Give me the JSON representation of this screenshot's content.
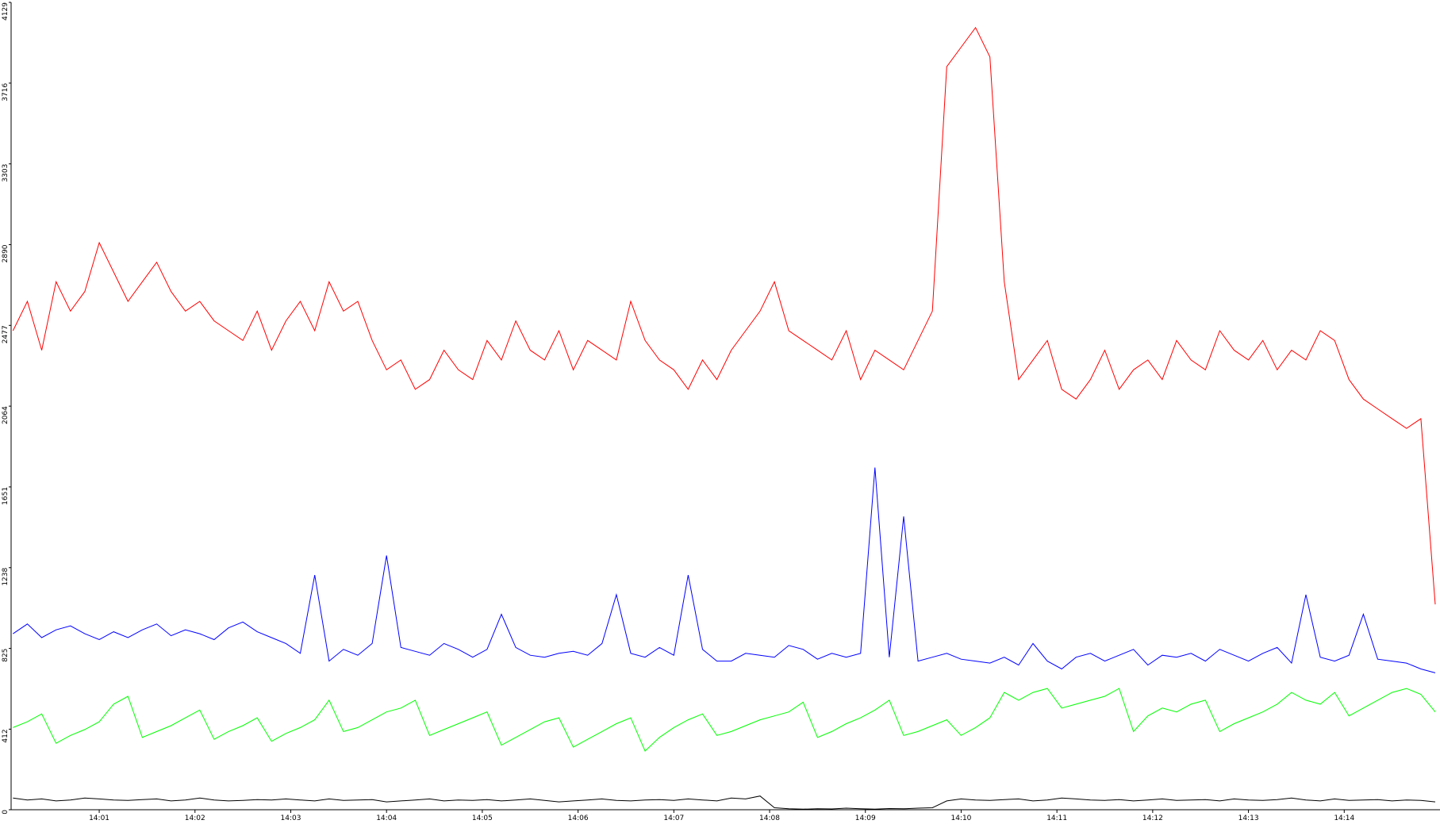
{
  "chart_data": {
    "type": "line",
    "x": [
      0.1,
      0.25,
      0.4,
      0.55,
      0.7,
      0.85,
      1.0,
      1.15,
      1.3,
      1.45,
      1.6,
      1.75,
      1.9,
      2.05,
      2.2,
      2.35,
      2.5,
      2.65,
      2.8,
      2.95,
      3.1,
      3.25,
      3.4,
      3.55,
      3.7,
      3.85,
      4.0,
      4.15,
      4.3,
      4.45,
      4.6,
      4.75,
      4.9,
      5.05,
      5.2,
      5.35,
      5.5,
      5.65,
      5.8,
      5.95,
      6.1,
      6.25,
      6.4,
      6.55,
      6.7,
      6.85,
      7.0,
      7.15,
      7.3,
      7.45,
      7.6,
      7.75,
      7.9,
      8.05,
      8.2,
      8.35,
      8.5,
      8.65,
      8.8,
      8.95,
      9.1,
      9.25,
      9.4,
      9.55,
      9.7,
      9.85,
      10.0,
      10.15,
      10.3,
      10.45,
      10.6,
      10.75,
      10.9,
      11.05,
      11.2,
      11.35,
      11.5,
      11.65,
      11.8,
      11.95,
      12.1,
      12.25,
      12.4,
      12.55,
      12.7,
      12.85,
      13.0,
      13.15,
      13.3,
      13.45,
      13.6,
      13.75,
      13.9,
      14.05,
      14.2,
      14.35,
      14.5,
      14.65,
      14.8,
      14.95
    ],
    "series": [
      {
        "color": "#ff0000",
        "values": [
          2450,
          2600,
          2350,
          2700,
          2550,
          2650,
          2900,
          2750,
          2600,
          2700,
          2800,
          2650,
          2550,
          2600,
          2500,
          2450,
          2400,
          2550,
          2350,
          2500,
          2600,
          2450,
          2700,
          2550,
          2600,
          2400,
          2250,
          2300,
          2150,
          2200,
          2350,
          2250,
          2200,
          2400,
          2300,
          2500,
          2350,
          2300,
          2450,
          2250,
          2400,
          2350,
          2300,
          2600,
          2400,
          2300,
          2250,
          2150,
          2300,
          2200,
          2350,
          2450,
          2550,
          2700,
          2450,
          2400,
          2350,
          2300,
          2450,
          2200,
          2350,
          2300,
          2250,
          2400,
          2550,
          3800,
          3900,
          4000,
          3850,
          2700,
          2200,
          2300,
          2400,
          2150,
          2100,
          2200,
          2350,
          2150,
          2250,
          2300,
          2200,
          2400,
          2300,
          2250,
          2450,
          2350,
          2300,
          2400,
          2250,
          2350,
          2300,
          2450,
          2400,
          2200,
          2100,
          2050,
          2000,
          1950,
          2000,
          1050
        ]
      },
      {
        "color": "#0000ff",
        "values": [
          900,
          950,
          880,
          920,
          940,
          900,
          870,
          910,
          880,
          920,
          950,
          890,
          920,
          900,
          870,
          930,
          960,
          910,
          880,
          850,
          800,
          1200,
          760,
          820,
          790,
          850,
          1300,
          830,
          810,
          790,
          850,
          820,
          780,
          820,
          1000,
          830,
          790,
          780,
          800,
          810,
          790,
          850,
          1100,
          800,
          780,
          830,
          790,
          1200,
          820,
          760,
          760,
          800,
          790,
          780,
          840,
          820,
          770,
          800,
          780,
          800,
          1750,
          780,
          1500,
          760,
          780,
          800,
          770,
          760,
          750,
          780,
          740,
          850,
          760,
          720,
          780,
          800,
          760,
          790,
          820,
          740,
          790,
          780,
          800,
          760,
          820,
          790,
          760,
          800,
          830,
          750,
          1100,
          780,
          760,
          790,
          1000,
          770,
          760,
          750,
          720,
          700
        ]
      },
      {
        "color": "#00ff00",
        "values": [
          420,
          450,
          490,
          340,
          380,
          410,
          450,
          540,
          580,
          370,
          400,
          430,
          470,
          510,
          360,
          400,
          430,
          470,
          350,
          390,
          420,
          460,
          560,
          400,
          420,
          460,
          500,
          520,
          560,
          380,
          410,
          440,
          470,
          500,
          330,
          370,
          410,
          450,
          470,
          320,
          360,
          400,
          440,
          470,
          300,
          370,
          420,
          460,
          490,
          380,
          400,
          430,
          460,
          480,
          500,
          550,
          370,
          400,
          440,
          470,
          510,
          560,
          380,
          400,
          430,
          460,
          380,
          420,
          470,
          600,
          560,
          600,
          620,
          520,
          540,
          560,
          580,
          620,
          400,
          480,
          520,
          500,
          540,
          560,
          400,
          440,
          470,
          500,
          540,
          600,
          560,
          540,
          600,
          480,
          520,
          560,
          600,
          620,
          590,
          500
        ]
      },
      {
        "color": "#000000",
        "values": [
          60,
          50,
          55,
          45,
          50,
          60,
          55,
          50,
          48,
          52,
          55,
          45,
          50,
          60,
          50,
          45,
          48,
          52,
          50,
          55,
          50,
          45,
          55,
          48,
          50,
          52,
          40,
          45,
          50,
          55,
          45,
          50,
          48,
          52,
          45,
          50,
          55,
          48,
          40,
          45,
          50,
          55,
          48,
          45,
          50,
          52,
          48,
          55,
          50,
          45,
          60,
          55,
          70,
          10,
          5,
          3,
          5,
          4,
          8,
          5,
          3,
          6,
          5,
          8,
          10,
          45,
          55,
          50,
          48,
          52,
          55,
          45,
          50,
          60,
          55,
          50,
          48,
          52,
          45,
          50,
          55,
          48,
          50,
          52,
          45,
          55,
          50,
          48,
          52,
          60,
          50,
          45,
          55,
          48,
          50,
          52,
          45,
          50,
          48,
          40
        ]
      }
    ],
    "xlim": [
      0.08,
      15.0
    ],
    "xticks": [
      {
        "value": 1,
        "label": "14:01"
      },
      {
        "value": 2,
        "label": "14:02"
      },
      {
        "value": 3,
        "label": "14:03"
      },
      {
        "value": 4,
        "label": "14:04"
      },
      {
        "value": 5,
        "label": "14:05"
      },
      {
        "value": 6,
        "label": "14:06"
      },
      {
        "value": 7,
        "label": "14:07"
      },
      {
        "value": 8,
        "label": "14:08"
      },
      {
        "value": 9,
        "label": "14:09"
      },
      {
        "value": 10,
        "label": "14:10"
      },
      {
        "value": 11,
        "label": "14:11"
      },
      {
        "value": 12,
        "label": "14:12"
      },
      {
        "value": 13,
        "label": "14:13"
      },
      {
        "value": 14,
        "label": "14:14"
      }
    ],
    "ylim": [
      0,
      4129
    ],
    "yticks": [
      0,
      412,
      825,
      1238,
      1651,
      2064,
      2477,
      2890,
      3303,
      3716,
      4129
    ]
  }
}
